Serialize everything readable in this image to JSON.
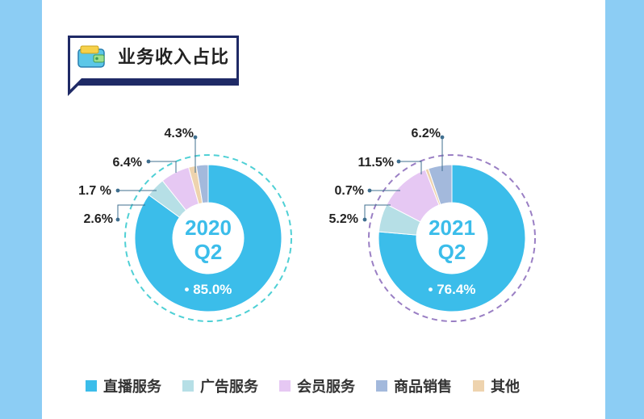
{
  "header": {
    "title": "业务收入占比"
  },
  "legend": [
    {
      "label": "直播服务",
      "color": "#3bbdea"
    },
    {
      "label": "广告服务",
      "color": "#b6dfe6"
    },
    {
      "label": "会员服务",
      "color": "#e6c8f3"
    },
    {
      "label": "商品销售",
      "color": "#a3b9dc"
    },
    {
      "label": "其他",
      "color": "#eed3ae"
    }
  ],
  "chart_data": [
    {
      "type": "pie",
      "center_label": [
        "2020",
        "Q2"
      ],
      "ring_color": "#4fd0d5",
      "categories": [
        "直播服务",
        "广告服务",
        "会员服务",
        "其他",
        "商品销售"
      ],
      "values": [
        85.0,
        4.3,
        6.4,
        1.7,
        2.6
      ],
      "labels": [
        "85.0%",
        "4.3%",
        "6.4%",
        "1.7 %",
        "2.6%"
      ]
    },
    {
      "type": "pie",
      "center_label": [
        "2021",
        "Q2"
      ],
      "ring_color": "#9a7fc4",
      "categories": [
        "直播服务",
        "广告服务",
        "会员服务",
        "其他",
        "商品销售"
      ],
      "values": [
        76.4,
        6.2,
        11.5,
        0.7,
        5.2
      ],
      "labels": [
        "76.4%",
        "6.2%",
        "11.5%",
        "0.7%",
        "5.2%"
      ]
    }
  ]
}
